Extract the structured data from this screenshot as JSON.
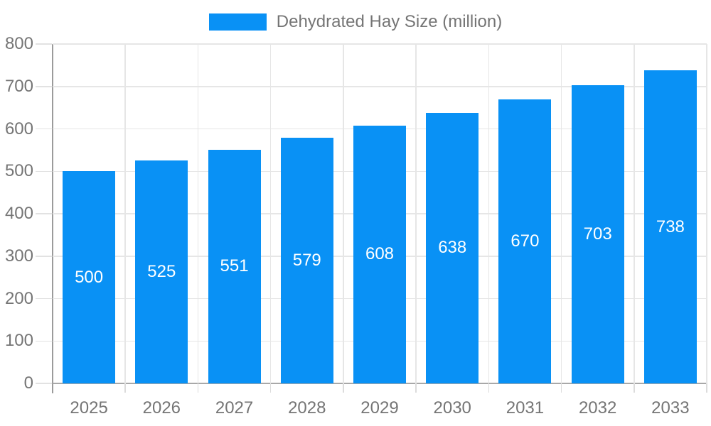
{
  "chart_data": {
    "type": "bar",
    "title": "",
    "series_name": "Dehydrated Hay Size (million)",
    "categories": [
      "2025",
      "2026",
      "2027",
      "2028",
      "2029",
      "2030",
      "2031",
      "2032",
      "2033"
    ],
    "values": [
      500,
      525,
      551,
      579,
      608,
      638,
      670,
      703,
      738
    ],
    "xlabel": "",
    "ylabel": "",
    "ylim": [
      0,
      800
    ],
    "yticks": [
      0,
      100,
      200,
      300,
      400,
      500,
      600,
      700,
      800
    ],
    "grid": "on",
    "legend_position": "top-center",
    "bar_labels_inside": true,
    "colors": {
      "bar": "#0991F5",
      "bar_label_text": "#FFFFFF",
      "axis_text": "#757575",
      "gridline": "#E6E6E6",
      "axis_line": "#9B9B9B",
      "background": "#FFFFFF"
    }
  },
  "legend": {
    "label": "Dehydrated Hay Size (million)"
  }
}
